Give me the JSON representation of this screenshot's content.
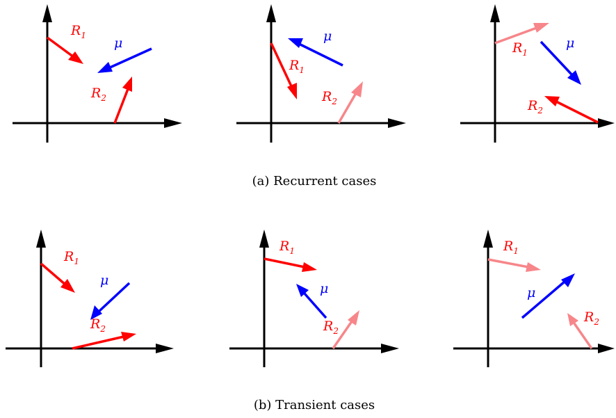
{
  "captions": {
    "a": "(a) Recurrent cases",
    "b": "(b) Transient cases"
  },
  "labels": {
    "r_letter": "R",
    "sub_1": "1",
    "sub_2": "2",
    "mu": "μ"
  },
  "colors": {
    "axis": "#000000",
    "r_strong": "#ff0000",
    "r_light": "#f7868a",
    "mu": "#0000ff"
  },
  "panels": [
    {
      "row": "recurrent",
      "r1": "strong",
      "r2": "strong"
    },
    {
      "row": "recurrent",
      "r1": "strong",
      "r2": "light"
    },
    {
      "row": "recurrent",
      "r1": "light",
      "r2": "strong"
    },
    {
      "row": "transient",
      "r1": "strong",
      "r2": "strong"
    },
    {
      "row": "transient",
      "r1": "strong",
      "r2": "light"
    },
    {
      "row": "transient",
      "r1": "light",
      "r2": "light"
    }
  ]
}
